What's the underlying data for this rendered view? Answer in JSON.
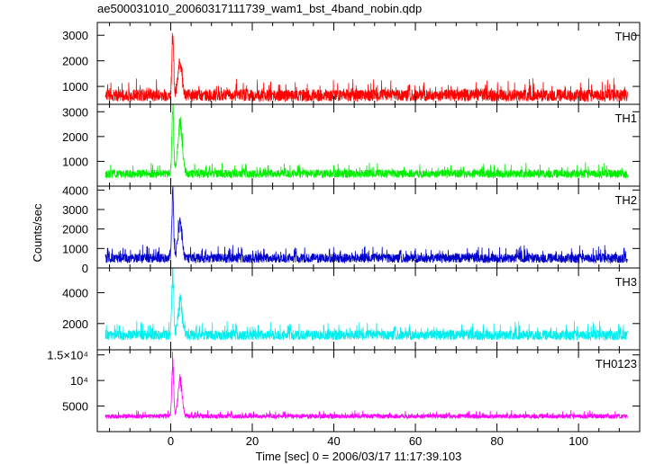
{
  "chart_data": {
    "type": "line",
    "title": "ae500031010_20060317111739_wam1_bst_4band_nobin.qdp",
    "xlabel": "Time [sec] 0 = 2006/03/17 11:17:39.103",
    "ylabel": "Counts/sec",
    "xlim": [
      -18,
      115
    ],
    "x_ticks": [
      0,
      20,
      40,
      60,
      80,
      100
    ],
    "data_range": [
      -16,
      112
    ],
    "panels": [
      {
        "name": "TH0",
        "color": "#ff0000",
        "ylim": [
          300,
          3500
        ],
        "y_ticks": [
          {
            "value": 1000,
            "label": "1000"
          },
          {
            "value": 2000,
            "label": "2000"
          },
          {
            "value": 3000,
            "label": "3000"
          }
        ],
        "baseline": 650,
        "noise": 170,
        "spikes": 12,
        "peaks": [
          {
            "t": 0.5,
            "amp": 2650,
            "width": 0.22
          },
          {
            "t": 2.3,
            "amp": 1400,
            "width": 0.5
          }
        ]
      },
      {
        "name": "TH1",
        "color": "#00ee00",
        "ylim": [
          0,
          3300
        ],
        "y_ticks": [
          {
            "value": 1000,
            "label": "1000"
          },
          {
            "value": 2000,
            "label": "2000"
          },
          {
            "value": 3000,
            "label": "3000"
          }
        ],
        "baseline": 500,
        "noise": 120,
        "spikes": 10,
        "peaks": [
          {
            "t": 0.5,
            "amp": 2750,
            "width": 0.22
          },
          {
            "t": 2.3,
            "amp": 2100,
            "width": 0.55
          }
        ]
      },
      {
        "name": "TH2",
        "color": "#0000cc",
        "ylim": [
          0,
          4200
        ],
        "y_ticks": [
          {
            "value": 0,
            "label": "0"
          },
          {
            "value": 1000,
            "label": "1000"
          },
          {
            "value": 2000,
            "label": "2000"
          },
          {
            "value": 3000,
            "label": "3000"
          },
          {
            "value": 4000,
            "label": "4000"
          }
        ],
        "baseline": 500,
        "noise": 170,
        "spikes": 14,
        "peaks": [
          {
            "t": 0.5,
            "amp": 3600,
            "width": 0.22
          },
          {
            "t": 2.3,
            "amp": 2000,
            "width": 0.5
          }
        ]
      },
      {
        "name": "TH3",
        "color": "#00eeee",
        "ylim": [
          300,
          5600
        ],
        "y_ticks": [
          {
            "value": 2000,
            "label": "2000"
          },
          {
            "value": 4000,
            "label": "4000"
          }
        ],
        "baseline": 1250,
        "noise": 230,
        "spikes": 12,
        "peaks": [
          {
            "t": 0.5,
            "amp": 4600,
            "width": 0.22
          },
          {
            "t": 2.3,
            "amp": 2400,
            "width": 0.5
          }
        ]
      },
      {
        "name": "TH0123",
        "color": "#ff00ff",
        "ylim": [
          0,
          16000
        ],
        "y_ticks": [
          {
            "value": 5000,
            "label": "5000"
          },
          {
            "value": 10000,
            "label": "10⁴"
          },
          {
            "value": 15000,
            "label": "1.5×10⁴"
          }
        ],
        "baseline": 3000,
        "noise": 320,
        "spikes": 10,
        "peaks": [
          {
            "t": 0.5,
            "amp": 12000,
            "width": 0.22
          },
          {
            "t": 2.3,
            "amp": 7500,
            "width": 0.5
          }
        ]
      }
    ]
  }
}
